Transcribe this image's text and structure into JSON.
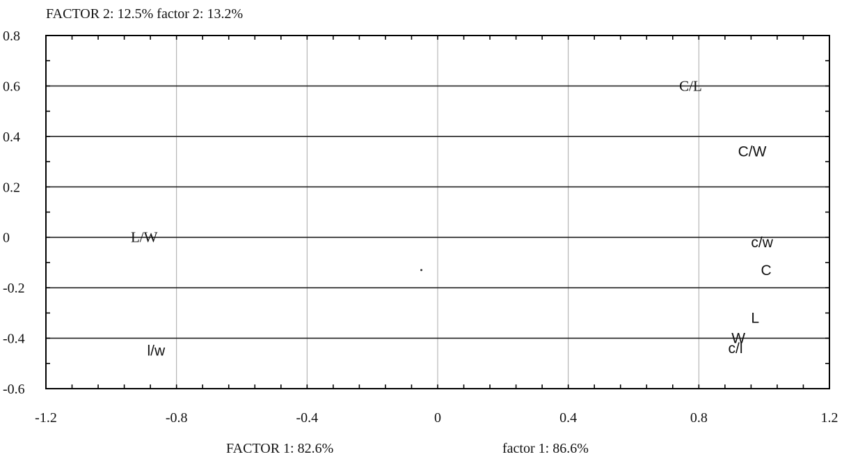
{
  "chart_data": {
    "type": "scatter",
    "title": "",
    "y_axis_title": "FACTOR 2: 12.5%  factor 2: 13.2%",
    "x_axis_titles": [
      "FACTOR 1: 82.6%",
      "factor 1: 86.6%"
    ],
    "xlim": [
      -1.2,
      1.2
    ],
    "ylim": [
      -0.6,
      0.8
    ],
    "x_ticks": [
      -1.2,
      -0.8,
      -0.4,
      0,
      0.4,
      0.8,
      1.2
    ],
    "x_tick_labels": [
      "-1.2",
      "-0.8",
      "-0.4",
      "0",
      "0.4",
      "0.8",
      "1.2"
    ],
    "y_ticks": [
      -0.6,
      -0.4,
      -0.2,
      0,
      0.2,
      0.4,
      0.6,
      0.8
    ],
    "y_tick_labels": [
      "-0.6",
      "-0.4",
      "-0.2",
      "0",
      "0.2",
      "0.4",
      "0.6",
      "0.8"
    ],
    "grid": true,
    "legend": "none",
    "points": [
      {
        "label": "C/L",
        "x": 0.74,
        "y": 0.6,
        "font": "serif"
      },
      {
        "label": "C/W",
        "x": 0.92,
        "y": 0.34,
        "font": "sans"
      },
      {
        "label": "L/W",
        "x": -0.94,
        "y": 0.0,
        "font": "serif"
      },
      {
        "label": "c/w",
        "x": 0.96,
        "y": -0.02,
        "font": "sans"
      },
      {
        "label": "C",
        "x": 0.99,
        "y": -0.13,
        "font": "sans"
      },
      {
        "label": "L",
        "x": 0.96,
        "y": -0.32,
        "font": "sans"
      },
      {
        "label": "W",
        "x": 0.9,
        "y": -0.4,
        "font": "sans"
      },
      {
        "label": "c/l",
        "x": 0.89,
        "y": -0.44,
        "font": "sans"
      },
      {
        "label": "l/w",
        "x": -0.89,
        "y": -0.45,
        "font": "sans"
      }
    ],
    "markers": [
      {
        "x": -0.05,
        "y": -0.13
      }
    ]
  }
}
